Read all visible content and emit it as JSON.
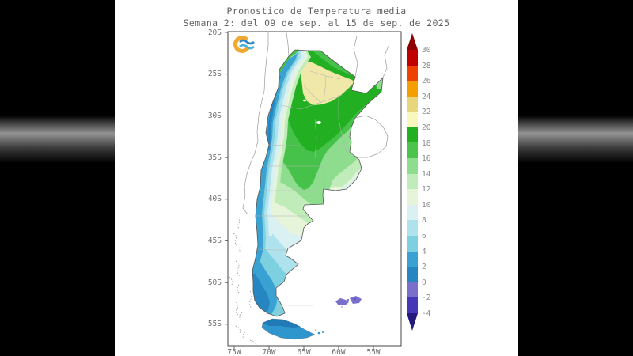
{
  "title": {
    "line1": "Pronostico de Temperatura media",
    "line2": "Semana 2: del 09 de sep. al 15 de sep. de 2025"
  },
  "axes": {
    "y_ticks": [
      "20S",
      "25S",
      "30S",
      "35S",
      "40S",
      "45S",
      "50S",
      "55S"
    ],
    "x_ticks": [
      "75W",
      "70W",
      "65W",
      "60W",
      "55W"
    ]
  },
  "colorbar": {
    "tick_values": [
      "30",
      "28",
      "26",
      "24",
      "22",
      "20",
      "18",
      "16",
      "14",
      "12",
      "10",
      "8",
      "6",
      "4",
      "2",
      "0",
      "-2",
      "-4"
    ],
    "segment_colors": [
      "#c00000",
      "#ee4300",
      "#f49e00",
      "#e8d67c",
      "#f9f7bd",
      "#22b022",
      "#4cc44c",
      "#8edc8e",
      "#c0ecba",
      "#e6f4da",
      "#d9f1f2",
      "#aee2ec",
      "#7cd0e0",
      "#3aa2d2",
      "#2586c2",
      "#7a70cc",
      "#4538b8"
    ],
    "arrow_top_color": "#8c0000",
    "arrow_bottom_color": "#241a7e"
  },
  "logo": {
    "name": "smn-weather-logo",
    "ring_color": "#f0a830",
    "wave_color_1": "#2d86c0",
    "wave_color_2": "#45b4d8"
  },
  "chart_data": {
    "type": "heatmap",
    "title": "Pronostico de Temperatura media",
    "subtitle": "Semana 2: del 09 de sep. al 15 de sep. de 2025",
    "geographic_area": "Argentina",
    "variable": "Temperatura media",
    "lat_tick_labels": [
      "20S",
      "25S",
      "30S",
      "35S",
      "40S",
      "45S",
      "50S",
      "55S"
    ],
    "lon_tick_labels": [
      "75W",
      "70W",
      "65W",
      "60W",
      "55W"
    ],
    "colorbar_ticks": [
      30,
      28,
      26,
      24,
      22,
      20,
      18,
      16,
      14,
      12,
      10,
      8,
      6,
      4,
      2,
      0,
      -2,
      -4
    ],
    "colorbar_colors_top_to_bottom": [
      "#8c0000",
      "#c00000",
      "#ee4300",
      "#f49e00",
      "#e8d67c",
      "#f9f7bd",
      "#22b022",
      "#4cc44c",
      "#8edc8e",
      "#c0ecba",
      "#e6f4da",
      "#d9f1f2",
      "#aee2ec",
      "#7cd0e0",
      "#3aa2d2",
      "#2586c2",
      "#7a70cc",
      "#4538b8",
      "#241a7e"
    ],
    "legend_position": "right vertical colorbar with arrow caps",
    "grid": false,
    "bands": [
      {
        "temp_c": "20-22",
        "area": "northern core over Chaco-Formosa"
      },
      {
        "temp_c": "18-20",
        "area": "ring around northern core, extending east toward Misiones"
      },
      {
        "temp_c": "16-18",
        "area": "Cordoba - Santa Fe - Corrientes belt"
      },
      {
        "temp_c": "14-16",
        "area": "central Pampas and Buenos Aires"
      },
      {
        "temp_c": "12-14",
        "area": "southern Buenos Aires and La Pampa"
      },
      {
        "temp_c": "10-12",
        "area": "northern Patagonia (Rio Negro)"
      },
      {
        "temp_c": "8-10",
        "area": "Chubut and a thin Atlantic coastal strip near Mar del Plata"
      },
      {
        "temp_c": "6-8",
        "area": "central Patagonia"
      },
      {
        "temp_c": "4-6",
        "area": "southern Patagonia"
      },
      {
        "temp_c": "2-4",
        "area": "Santa Cruz cordillera and Tierra del Fuego"
      },
      {
        "temp_c": "0-2",
        "area": "high Andes strip (west edge) and far southwest"
      },
      {
        "temp_c": "-2-0",
        "area": "Islas Malvinas"
      }
    ]
  }
}
